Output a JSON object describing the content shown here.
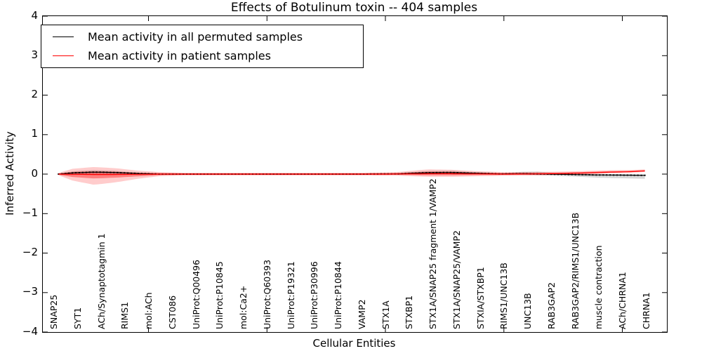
{
  "chart_data": {
    "type": "line",
    "title": "Effects of Botulinum toxin -- 404 samples",
    "xlabel": "Cellular Entities",
    "ylabel": "Inferred Activity",
    "ylim": [
      -4,
      4
    ],
    "ytick_values": [
      4,
      3,
      2,
      1,
      0,
      -1,
      -2,
      -3,
      -4
    ],
    "ytick_labels": [
      "4",
      "3",
      "2",
      "1",
      "0",
      "−1",
      "−2",
      "−3",
      "−4"
    ],
    "grid": false,
    "legend_position": "upper-left",
    "categories": [
      "SNAP25",
      "SYT1",
      "ACh/Synaptotagmin 1",
      "RIMS1",
      "mol:ACh",
      "CST086",
      "UniProt:Q00496",
      "UniProt:P10845",
      "mol:Ca2+",
      "UniProt:Q60393",
      "UniProt:P19321",
      "UniProt:P30996",
      "UniProt:P10844",
      "VAMP2",
      "STX1A",
      "STXBP1",
      "STX1A/SNAP25 fragment 1/VAMP2",
      "STX1A/SNAP25/VAMP2",
      "STXIA/STXBP1",
      "RIMS1/UNC13B",
      "UNC13B",
      "RAB3GAP2",
      "RAB3GAP2/RIMS1/UNC13B",
      "muscle contraction",
      "ACh/CHRNA1",
      "CHRNA1"
    ],
    "x_major_tick_entity_indices": [
      4,
      9,
      14,
      19,
      24
    ],
    "n_points": 170,
    "x_data_range": [
      0.2,
      24.95
    ],
    "series": [
      {
        "name": "Mean activity in all permuted samples",
        "color": "#000000",
        "marker": "square",
        "control_points": [
          [
            0.2,
            0.0
          ],
          [
            0.8,
            0.03
          ],
          [
            1.7,
            0.05
          ],
          [
            2.6,
            0.04
          ],
          [
            3.6,
            0.015
          ],
          [
            4.5,
            0.0
          ],
          [
            13.0,
            0.0
          ],
          [
            14.5,
            0.005
          ],
          [
            15.8,
            0.035
          ],
          [
            16.8,
            0.04
          ],
          [
            17.8,
            0.02
          ],
          [
            18.8,
            0.005
          ],
          [
            19.8,
            0.01
          ],
          [
            20.8,
            0.0
          ],
          [
            21.8,
            -0.01
          ],
          [
            22.8,
            -0.02
          ],
          [
            23.8,
            -0.025
          ],
          [
            24.95,
            -0.03
          ]
        ]
      },
      {
        "name": "Mean activity in patient samples",
        "color": "#ff0000",
        "marker": "none",
        "control_points": [
          [
            0.2,
            0.0
          ],
          [
            0.8,
            -0.005
          ],
          [
            1.7,
            -0.01
          ],
          [
            2.6,
            -0.01
          ],
          [
            3.6,
            -0.005
          ],
          [
            4.5,
            0.0
          ],
          [
            14.0,
            0.0
          ],
          [
            15.8,
            0.01
          ],
          [
            16.8,
            0.01
          ],
          [
            17.8,
            0.005
          ],
          [
            19.0,
            0.0
          ],
          [
            20.5,
            0.005
          ],
          [
            21.5,
            0.015
          ],
          [
            22.5,
            0.03
          ],
          [
            23.5,
            0.05
          ],
          [
            24.3,
            0.06
          ],
          [
            24.95,
            0.08
          ]
        ]
      }
    ],
    "bands": [
      {
        "name": "permuted-samples-spread",
        "color": "#000000",
        "opacity": 0.16,
        "series": 0,
        "control_points": [
          [
            0.2,
            0.01,
            0.01
          ],
          [
            0.8,
            0.04,
            0.05
          ],
          [
            1.7,
            0.05,
            0.06
          ],
          [
            2.6,
            0.04,
            0.05
          ],
          [
            3.6,
            0.02,
            0.025
          ],
          [
            4.5,
            0.015,
            0.015
          ],
          [
            13.0,
            0.015,
            0.015
          ],
          [
            14.5,
            0.02,
            0.02
          ],
          [
            15.8,
            0.045,
            0.035
          ],
          [
            16.8,
            0.045,
            0.035
          ],
          [
            17.8,
            0.03,
            0.025
          ],
          [
            19.0,
            0.02,
            0.02
          ],
          [
            19.8,
            0.05,
            0.025
          ],
          [
            20.4,
            0.06,
            0.03
          ],
          [
            21.0,
            0.04,
            0.035
          ],
          [
            22.0,
            0.03,
            0.05
          ],
          [
            23.0,
            0.025,
            0.07
          ],
          [
            24.0,
            0.02,
            0.08
          ],
          [
            24.95,
            0.02,
            0.09
          ]
        ]
      },
      {
        "name": "patient-samples-spread-outer",
        "color": "#ff0000",
        "opacity": 0.2,
        "series": 1,
        "control_points": [
          [
            0.2,
            0.03,
            0.03
          ],
          [
            0.8,
            0.14,
            0.16
          ],
          [
            1.7,
            0.19,
            0.26
          ],
          [
            2.6,
            0.16,
            0.2
          ],
          [
            3.6,
            0.09,
            0.11
          ],
          [
            4.5,
            0.05,
            0.05
          ],
          [
            5.5,
            0.035,
            0.035
          ],
          [
            13.0,
            0.035,
            0.035
          ],
          [
            14.5,
            0.05,
            0.04
          ],
          [
            15.8,
            0.11,
            0.08
          ],
          [
            16.8,
            0.1,
            0.08
          ],
          [
            17.8,
            0.07,
            0.06
          ],
          [
            19.0,
            0.05,
            0.04
          ],
          [
            20.0,
            0.05,
            0.04
          ],
          [
            21.0,
            0.05,
            0.035
          ],
          [
            22.0,
            0.05,
            0.03
          ],
          [
            23.0,
            0.05,
            0.03
          ],
          [
            24.0,
            0.045,
            0.028
          ],
          [
            24.95,
            0.04,
            0.025
          ]
        ]
      },
      {
        "name": "patient-samples-spread-inner",
        "color": "#ff0000",
        "opacity": 0.38,
        "series": 1,
        "control_points": [
          [
            0.2,
            0.015,
            0.015
          ],
          [
            0.8,
            0.06,
            0.07
          ],
          [
            1.7,
            0.08,
            0.1
          ],
          [
            2.6,
            0.07,
            0.08
          ],
          [
            3.6,
            0.04,
            0.05
          ],
          [
            4.5,
            0.025,
            0.025
          ],
          [
            5.5,
            0.018,
            0.018
          ],
          [
            13.0,
            0.018,
            0.018
          ],
          [
            14.5,
            0.025,
            0.02
          ],
          [
            15.8,
            0.05,
            0.04
          ],
          [
            16.8,
            0.05,
            0.04
          ],
          [
            17.8,
            0.035,
            0.03
          ],
          [
            19.0,
            0.025,
            0.02
          ],
          [
            21.0,
            0.025,
            0.018
          ],
          [
            22.0,
            0.025,
            0.015
          ],
          [
            23.0,
            0.025,
            0.015
          ],
          [
            24.95,
            0.022,
            0.012
          ]
        ]
      }
    ]
  }
}
